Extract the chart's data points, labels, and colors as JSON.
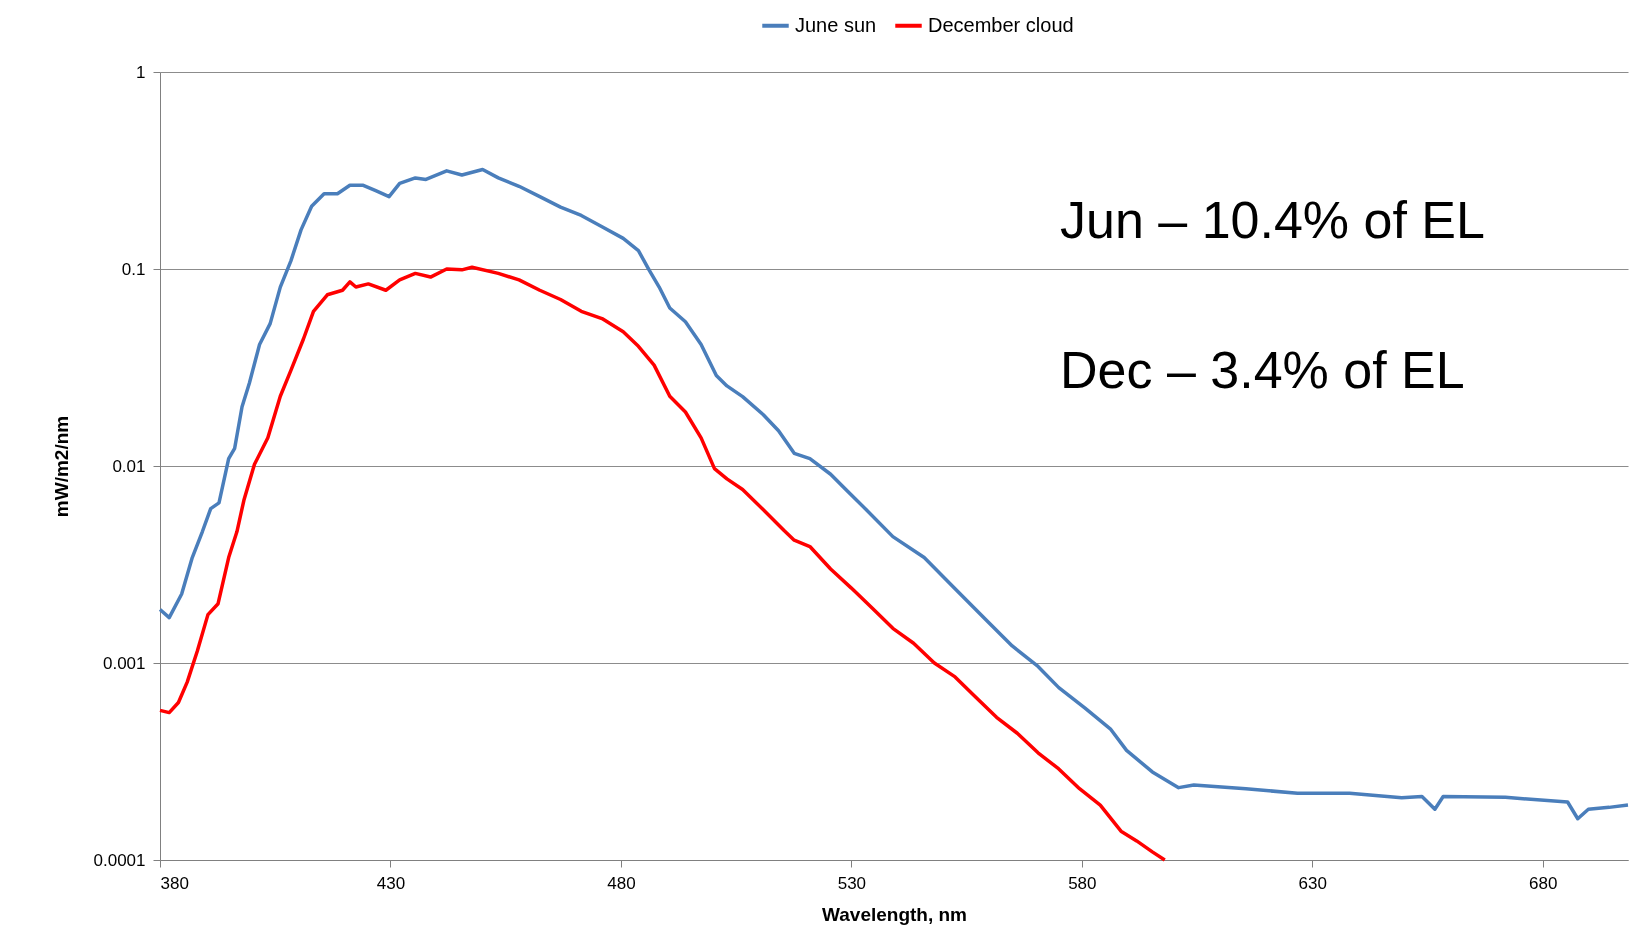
{
  "chart_data": {
    "type": "line",
    "xlabel": "Wavelength, nm",
    "ylabel": "mW/m2/nm",
    "log": "y",
    "grid": "y",
    "legend": "top",
    "line_style": "solid",
    "marker": "none",
    "xlim": [
      380,
      698.5
    ],
    "xticks": [
      380,
      430,
      480,
      530,
      580,
      630,
      680
    ],
    "ylim": [
      0.0001,
      1
    ],
    "yticks": [
      0.0001,
      0.001,
      0.01,
      0.1,
      1
    ],
    "annotations": [
      "Jun – 10.4% of EL",
      "Dec – 3.4% of EL"
    ],
    "series": [
      {
        "name": "June sun",
        "color": "#4a7ebb",
        "x": [
          380,
          382,
          384.7,
          387,
          389.2,
          391,
          392.8,
          394.9,
          396.2,
          397.8,
          399.4,
          401.6,
          403.9,
          406.1,
          408.4,
          410.6,
          412.9,
          415.6,
          418.5,
          421.2,
          424.1,
          426.8,
          429.7,
          432,
          435.4,
          437.7,
          442.2,
          445.5,
          450,
          453.4,
          457.9,
          462.4,
          466.9,
          471.4,
          475.9,
          480.5,
          483.8,
          486.1,
          488.3,
          490.6,
          494,
          497.4,
          500.7,
          503,
          506.4,
          510.9,
          514.2,
          517.6,
          521,
          525.5,
          528.8,
          533.4,
          539,
          545.8,
          552.5,
          559.3,
          564.9,
          570.5,
          575,
          580.7,
          586.3,
          589.7,
          595.3,
          601,
          604.3,
          615.6,
          626.8,
          638.1,
          649.4,
          653.8,
          656.6,
          658.4,
          671.9,
          685.4,
          687.6,
          689.9,
          694.4,
          698.5
        ],
        "values": [
          0.00187,
          0.0017,
          0.00224,
          0.00343,
          0.00465,
          0.00608,
          0.0065,
          0.0109,
          0.0123,
          0.02,
          0.0264,
          0.0414,
          0.0528,
          0.0809,
          0.11,
          0.158,
          0.208,
          0.241,
          0.241,
          0.266,
          0.266,
          0.25,
          0.233,
          0.272,
          0.29,
          0.285,
          0.315,
          0.3,
          0.32,
          0.29,
          0.263,
          0.233,
          0.206,
          0.187,
          0.164,
          0.143,
          0.124,
          0.099,
          0.081,
          0.0634,
          0.054,
          0.0414,
          0.0288,
          0.0255,
          0.0225,
          0.0182,
          0.0151,
          0.0116,
          0.0109,
          0.00908,
          0.00759,
          0.00595,
          0.00438,
          0.00343,
          0.00238,
          0.00165,
          0.00122,
          0.00096,
          0.00075,
          0.00059,
          0.00046,
          0.00036,
          0.00028,
          0.000233,
          0.00024,
          0.00023,
          0.000218,
          0.000218,
          0.000207,
          0.00021,
          0.000181,
          0.00021,
          0.000208,
          0.000197,
          0.000162,
          0.000181,
          0.000185,
          0.00019
        ]
      },
      {
        "name": "December cloud",
        "color": "#ff0000",
        "x": [
          380,
          382,
          384,
          385.9,
          388.1,
          390.4,
          392.6,
          394.9,
          396.7,
          398.2,
          400.5,
          403.4,
          406.1,
          408.4,
          411.1,
          413.3,
          416.3,
          419.6,
          421.2,
          422.5,
          425.2,
          429,
          432,
          435.4,
          438.7,
          442.2,
          445.5,
          447.7,
          453.4,
          457.9,
          462.4,
          466.9,
          471.4,
          475.9,
          480.5,
          483.8,
          487.2,
          490.6,
          494,
          497.4,
          500.3,
          503,
          506.4,
          510.9,
          515.4,
          517.6,
          521,
          525.5,
          530,
          534.5,
          539,
          543.5,
          548,
          552.5,
          557,
          561.5,
          566,
          570.5,
          575,
          579.5,
          584,
          588.5,
          591.9,
          595.3,
          598
        ],
        "values": [
          0.000575,
          0.00056,
          0.00063,
          0.0008,
          0.00115,
          0.00176,
          0.002,
          0.00343,
          0.00465,
          0.0067,
          0.0102,
          0.0139,
          0.0226,
          0.0306,
          0.044,
          0.061,
          0.074,
          0.078,
          0.086,
          0.081,
          0.084,
          0.078,
          0.088,
          0.095,
          0.091,
          0.1,
          0.099,
          0.102,
          0.095,
          0.088,
          0.078,
          0.07,
          0.061,
          0.056,
          0.048,
          0.0405,
          0.0325,
          0.0226,
          0.0188,
          0.0139,
          0.0097,
          0.0086,
          0.0076,
          0.006,
          0.0047,
          0.0042,
          0.0039,
          0.003,
          0.0024,
          0.0019,
          0.0015,
          0.00126,
          0.001,
          0.00085,
          0.00067,
          0.00053,
          0.00044,
          0.00035,
          0.00029,
          0.00023,
          0.00019,
          0.00014,
          0.000125,
          0.00011,
          0.0001
        ]
      }
    ]
  }
}
